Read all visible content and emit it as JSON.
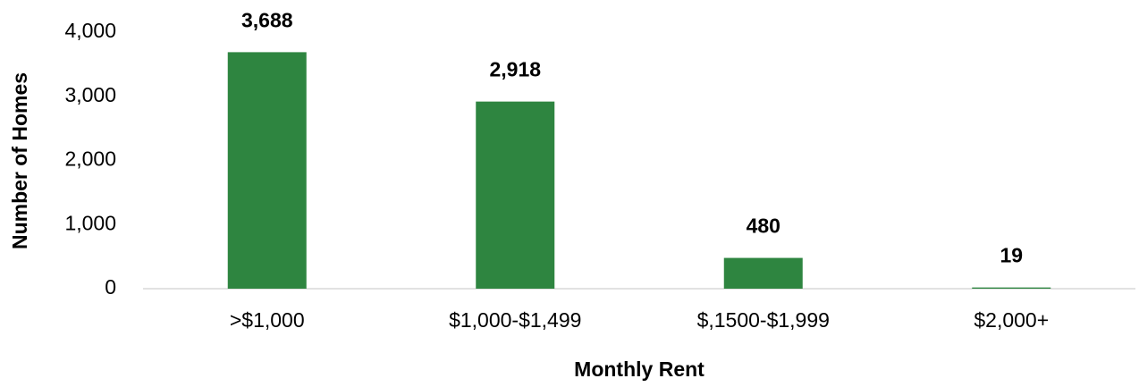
{
  "chart_data": {
    "type": "bar",
    "x_label": "Monthly Rent",
    "y_label": "Number of Homes",
    "categories": [
      ">$1,000",
      "$1,000-$1,499",
      "$,1500-$1,999",
      "$2,000+"
    ],
    "values": [
      3688,
      2918,
      480,
      19
    ],
    "value_labels": [
      "3,688",
      "2,918",
      "480",
      "19"
    ],
    "color": "#2e8540",
    "ylim": [
      0,
      4000
    ],
    "yticks": [
      0,
      {
        "value": 1000,
        "label": "1,000"
      },
      {
        "value": 2000,
        "label": "2,000"
      },
      {
        "value": 3000,
        "label": "3,000"
      },
      {
        "value": 4000,
        "label": "4,000"
      }
    ],
    "grid": false
  }
}
